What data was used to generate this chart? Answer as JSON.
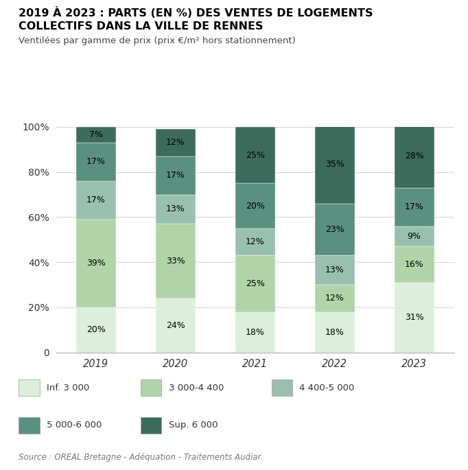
{
  "title_line1": "2019 À 2023 : PARTS (EN %) DES VENTES DE LOGEMENTS",
  "title_line2": "COLLECTIFS DANS LA VILLE DE RENNES",
  "subtitle": "Ventilées par gamme de prix (prix €/m² hors stationnement)",
  "source": "Source : OREAL Bretagne - Adéquation - Traitements Audiar.",
  "years": [
    "2019",
    "2020",
    "2021",
    "2022",
    "2023"
  ],
  "categories": [
    "Inf. 3 000",
    "3 000-4 400",
    "4 400-5 000",
    "5 000-6 000",
    "Sup. 6 000"
  ],
  "colors": [
    "#ddeedd",
    "#b0d4a8",
    "#99bfb0",
    "#5a9080",
    "#3d6b5c"
  ],
  "data": {
    "2019": [
      20,
      39,
      17,
      17,
      7
    ],
    "2020": [
      24,
      33,
      13,
      17,
      12
    ],
    "2021": [
      18,
      25,
      12,
      20,
      25
    ],
    "2022": [
      18,
      12,
      13,
      23,
      35
    ],
    "2023": [
      31,
      16,
      9,
      17,
      28
    ]
  },
  "bar_width": 0.5,
  "ylim": [
    0,
    100
  ],
  "yticks": [
    0,
    20,
    40,
    60,
    80,
    100
  ],
  "ytick_labels": [
    "0",
    "20%",
    "40%",
    "60%",
    "80%",
    "100%"
  ]
}
